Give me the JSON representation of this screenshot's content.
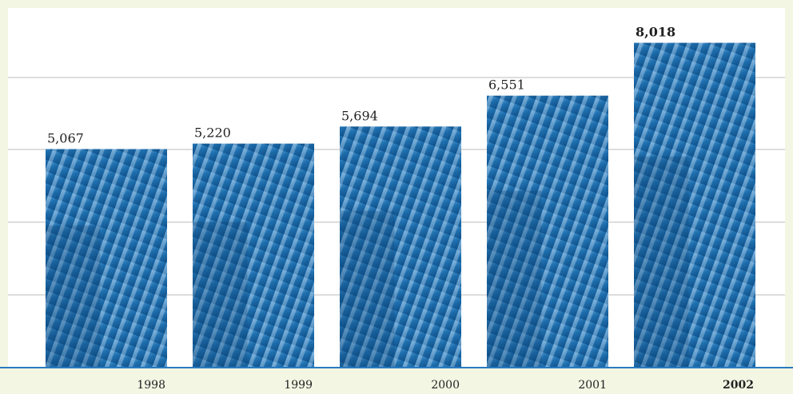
{
  "chart_data": {
    "type": "bar",
    "categories": [
      "1998",
      "1999",
      "2000",
      "2001",
      "2002"
    ],
    "values": [
      5067,
      5220,
      5694,
      6551,
      8018
    ],
    "value_labels": [
      "5,067",
      "5,220",
      "5,694",
      "6,551",
      "8,018"
    ],
    "color": "#1f6fae",
    "ylim": [
      -1000,
      9000
    ]
  }
}
